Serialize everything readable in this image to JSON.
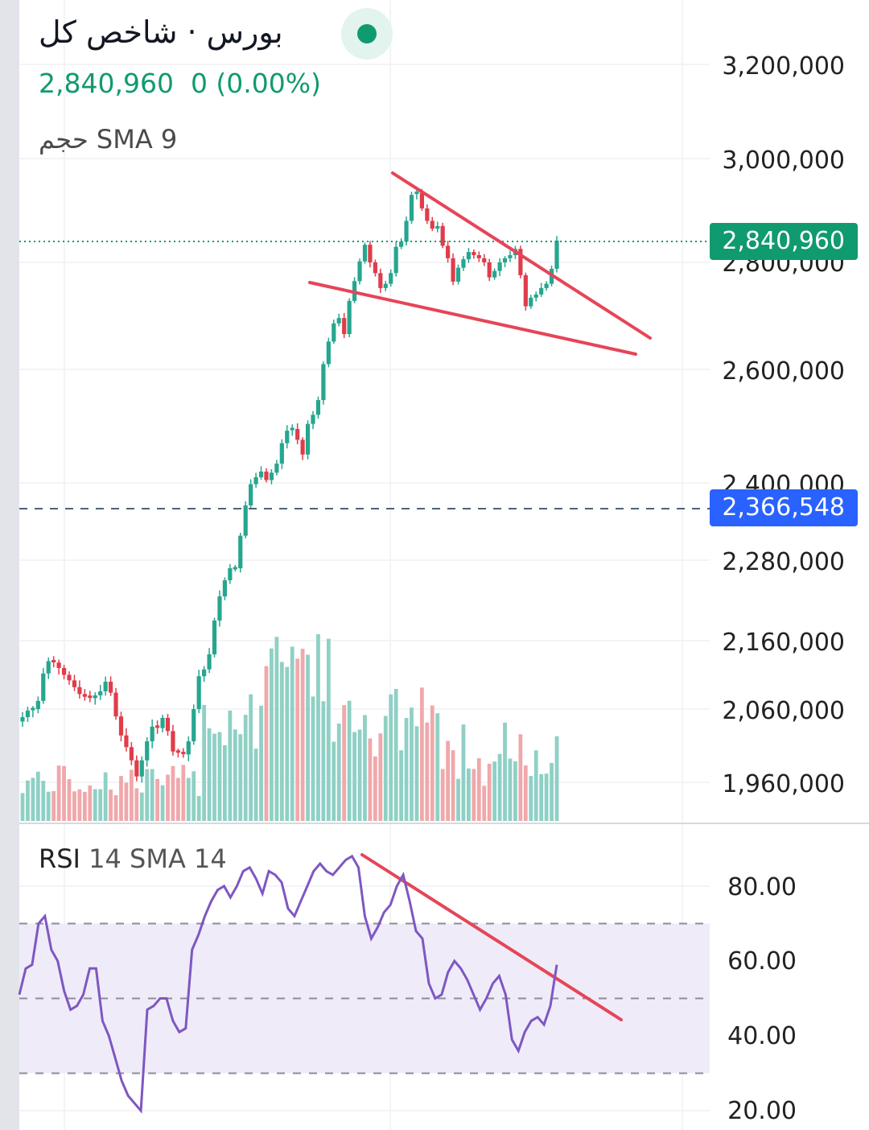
{
  "header": {
    "symbol_title": "بورس · شاخص کل",
    "last_price": "2,840,960",
    "change": "0 (0.00%)",
    "volume_indicator": "حجم SMA 9",
    "rsi_indicator_name": "RSI",
    "rsi_indicator_params": "14 SMA 14"
  },
  "colors": {
    "up": "#26a68f",
    "down": "#e03c4b",
    "vol_up": "#8fd0c5",
    "vol_down": "#f0a8ab",
    "trendline": "#e64558",
    "rsi_line": "#7e57c2",
    "rsi_band": "#efebf8",
    "last_price_tag": "#109a6f",
    "ref_price_tag": "#2962ff"
  },
  "price_axis": {
    "labels": [
      "3,200,000",
      "3,000,000",
      "2,800,000",
      "2,600,000",
      "2,400,000",
      "2,280,000",
      "2,160,000",
      "2,060,000",
      "1,960,000"
    ],
    "last_price_tag": "2,840,960",
    "ref_price_tag": "2,366,548"
  },
  "rsi_axis": {
    "labels": [
      "80.00",
      "60.00",
      "40.00",
      "20.00"
    ],
    "band_upper": 70,
    "band_lower": 30,
    "middle": 50
  },
  "chart_data": [
    {
      "type": "candlestick",
      "title": "بورس · شاخص کل",
      "y_axis_labels": [
        "3,200,000",
        "3,000,000",
        "2,800,000",
        "2,600,000",
        "2,400,000",
        "2,280,000",
        "2,160,000",
        "2,060,000",
        "1,960,000"
      ],
      "last_value": 2840960,
      "reference_value": 2366548,
      "approx_close_series": [
        2049000,
        2058000,
        2060000,
        2072000,
        2112000,
        2130000,
        2128000,
        2120000,
        2110000,
        2102000,
        2092000,
        2082000,
        2078000,
        2076000,
        2080000,
        2086000,
        2100000,
        2084000,
        2050000,
        2024000,
        2008000,
        1990000,
        1968000,
        1990000,
        2016000,
        2036000,
        2034000,
        2048000,
        2030000,
        2002000,
        2000000,
        1998000,
        2016000,
        2060000,
        2108000,
        2118000,
        2140000,
        2190000,
        2226000,
        2250000,
        2268000,
        2268000,
        2318000,
        2365000,
        2398000,
        2410000,
        2420000,
        2405000,
        2418000,
        2434000,
        2470000,
        2492000,
        2495000,
        2476000,
        2450000,
        2504000,
        2520000,
        2546000,
        2610000,
        2652000,
        2686000,
        2696000,
        2666000,
        2728000,
        2765000,
        2802000,
        2834000,
        2800000,
        2780000,
        2752000,
        2760000,
        2780000,
        2830000,
        2840000,
        2880000,
        2930000,
        2934000,
        2904000,
        2880000,
        2865000,
        2870000,
        2832000,
        2808000,
        2764000,
        2790000,
        2806000,
        2820000,
        2814000,
        2808000,
        2800000,
        2772000,
        2784000,
        2800000,
        2808000,
        2814000,
        2826000,
        2776000,
        2718000,
        2734000,
        2740000,
        2752000,
        2760000,
        2788000,
        2842000
      ]
    },
    {
      "type": "bar",
      "title": "حجم SMA 9",
      "note": "volume bars colored by candle direction"
    },
    {
      "type": "line",
      "title": "RSI 14 SMA 14",
      "y_axis_labels": [
        "80.00",
        "60.00",
        "40.00",
        "20.00"
      ],
      "band": [
        30,
        70
      ],
      "values": [
        51,
        58,
        59,
        70,
        72,
        63,
        60,
        52,
        47,
        48,
        51,
        58,
        58,
        44,
        40,
        34,
        28,
        24,
        22,
        20,
        47,
        48,
        50,
        50,
        44,
        41,
        42,
        63,
        67,
        72,
        76,
        79,
        80,
        77,
        80,
        84,
        85,
        82,
        78,
        84,
        83,
        81,
        74,
        72,
        76,
        80,
        84,
        86,
        84,
        83,
        85,
        87,
        88,
        85,
        72,
        66,
        69,
        73,
        75,
        80,
        83,
        76,
        68,
        66,
        54,
        50,
        51,
        57,
        60,
        58,
        55,
        51,
        47,
        50,
        54,
        56,
        51,
        39,
        36,
        41,
        44,
        45,
        43,
        48,
        59
      ]
    }
  ]
}
